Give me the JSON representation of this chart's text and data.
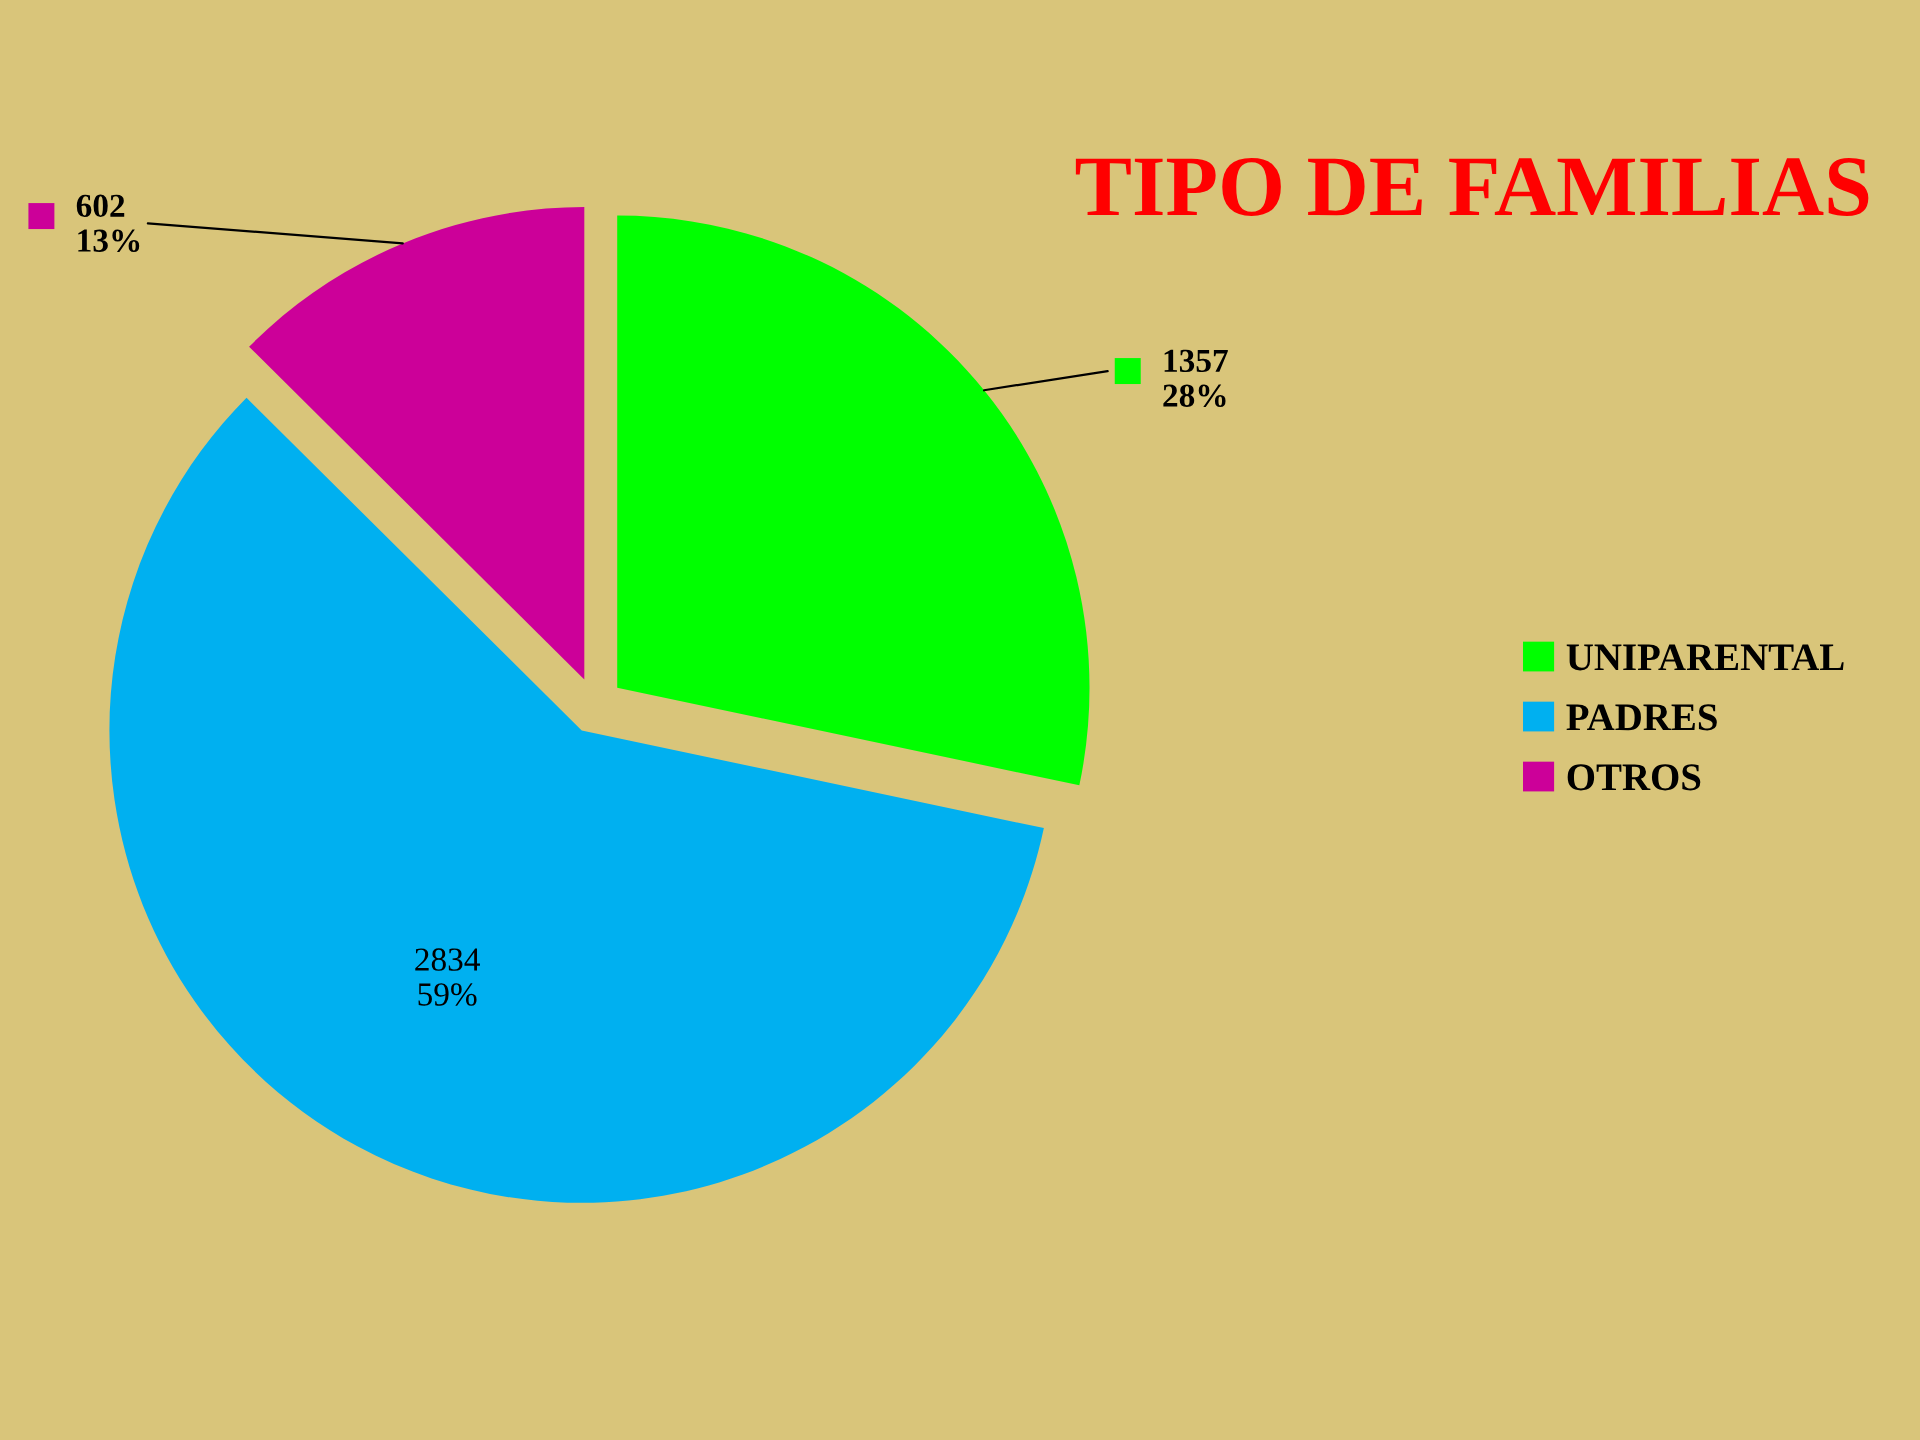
{
  "chart_data": {
    "type": "pie",
    "title": "TIPO DE FAMILIAS",
    "categories": [
      "UNIPARENTAL",
      "PADRES",
      "OTROS"
    ],
    "values": [
      1357,
      2834,
      602
    ],
    "colors": [
      "#00ff00",
      "#00b0f0",
      "#cc0099"
    ],
    "value_labels": [
      "1357\n28%",
      "2834\n59%",
      "602\n13%"
    ],
    "legend": "right"
  }
}
